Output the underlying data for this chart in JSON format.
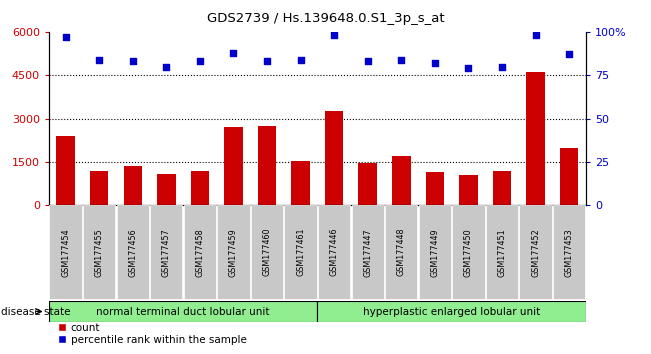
{
  "title": "GDS2739 / Hs.139648.0.S1_3p_s_at",
  "samples": [
    "GSM177454",
    "GSM177455",
    "GSM177456",
    "GSM177457",
    "GSM177458",
    "GSM177459",
    "GSM177460",
    "GSM177461",
    "GSM177446",
    "GSM177447",
    "GSM177448",
    "GSM177449",
    "GSM177450",
    "GSM177451",
    "GSM177452",
    "GSM177453"
  ],
  "counts": [
    2400,
    1200,
    1350,
    1100,
    1200,
    2700,
    2750,
    1550,
    3250,
    1450,
    1700,
    1150,
    1050,
    1200,
    4600,
    2000
  ],
  "percentiles": [
    97,
    84,
    83,
    80,
    83,
    88,
    83,
    84,
    98,
    83,
    84,
    82,
    79,
    80,
    98,
    87
  ],
  "bar_color": "#cc0000",
  "dot_color": "#0000cc",
  "group1_label": "normal terminal duct lobular unit",
  "group1_count": 8,
  "group2_label": "hyperplastic enlarged lobular unit",
  "group2_count": 8,
  "group1_color": "#90ee90",
  "group2_color": "#90ee90",
  "ylim_left": [
    0,
    6000
  ],
  "ylim_right": [
    0,
    100
  ],
  "yticks_left": [
    0,
    1500,
    3000,
    4500,
    6000
  ],
  "yticks_right": [
    0,
    25,
    50,
    75,
    100
  ],
  "legend_count_label": "count",
  "legend_percentile_label": "percentile rank within the sample",
  "disease_state_label": "disease state",
  "bg_color": "#ffffff",
  "tick_bg_color": "#c8c8c8"
}
